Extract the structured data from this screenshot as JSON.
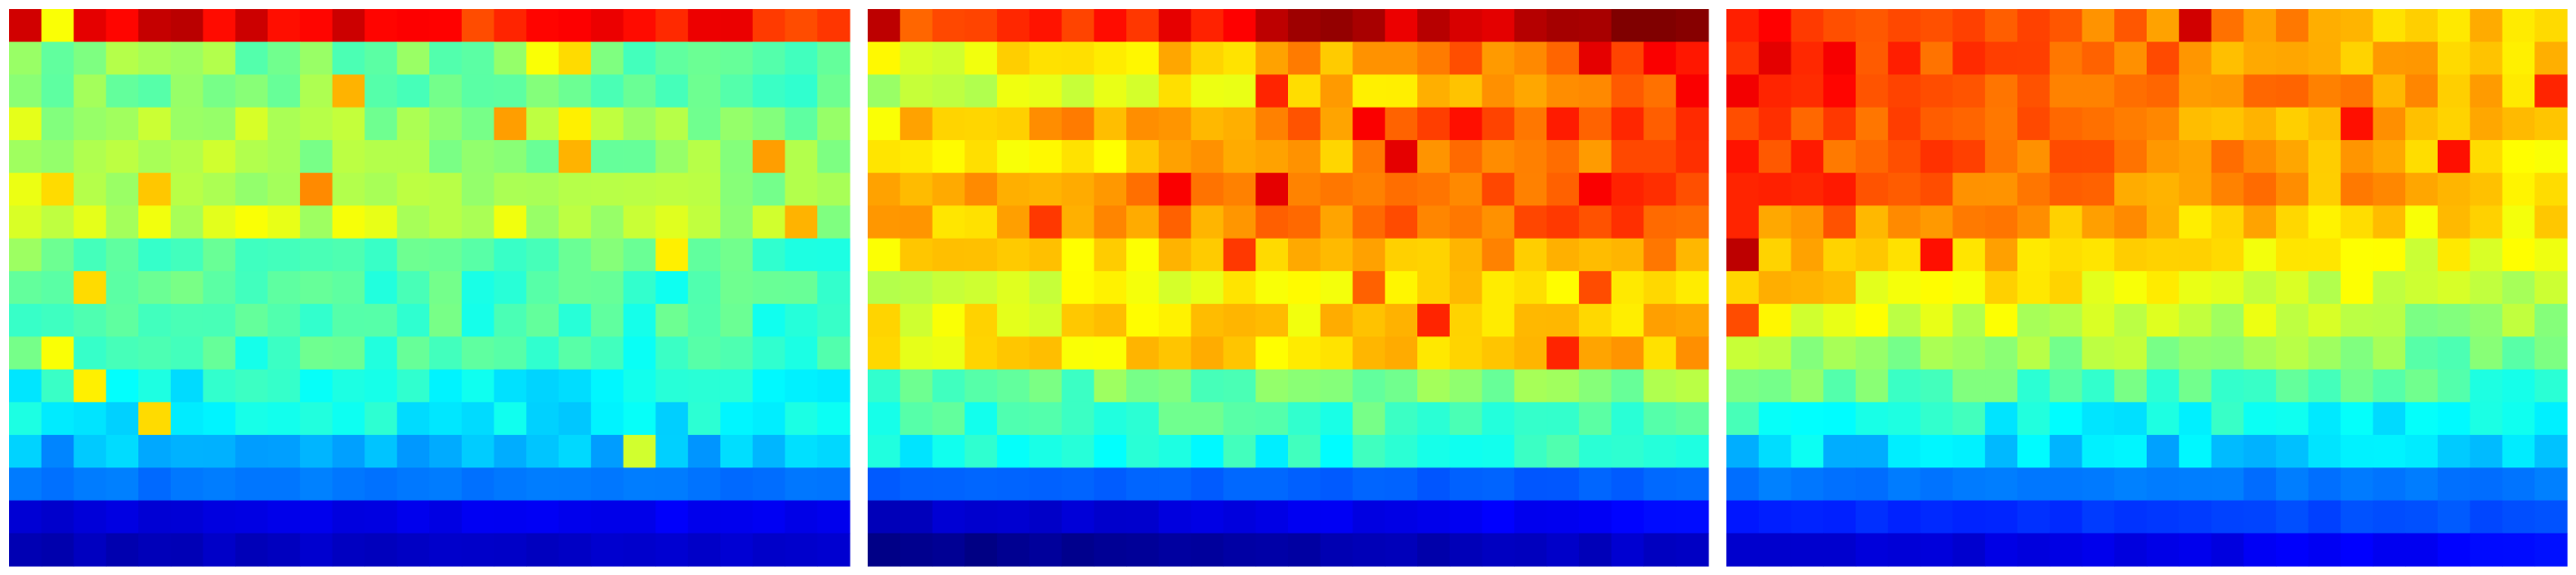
{
  "chart_data": [
    {
      "type": "heatmap",
      "colormap": "jet",
      "vrange": [
        0,
        1
      ],
      "rows": 17,
      "cols": 26,
      "row_profile": [
        0.88,
        0.48,
        0.48,
        0.52,
        0.52,
        0.54,
        0.56,
        0.46,
        0.44,
        0.44,
        0.43,
        0.38,
        0.37,
        0.3,
        0.24,
        0.1,
        0.07
      ],
      "col_ramp": [
        0.04,
        -0.02
      ],
      "column_trend": 0.1,
      "mark_colors": [
        "#800000",
        "#ff7f00",
        "#ffff00",
        "#00ffff"
      ],
      "hotspots": [
        [
          0,
          0,
          0.92
        ],
        [
          0,
          1,
          0.62
        ],
        [
          0,
          14,
          0.8
        ],
        [
          0,
          15,
          0.84
        ],
        [
          0,
          24,
          0.8
        ],
        [
          1,
          16,
          0.62
        ],
        [
          1,
          17,
          0.66
        ],
        [
          3,
          17,
          0.64
        ],
        [
          4,
          17,
          0.7
        ],
        [
          4,
          23,
          0.72
        ],
        [
          5,
          1,
          0.66
        ],
        [
          5,
          4,
          0.68
        ],
        [
          5,
          9,
          0.74
        ],
        [
          6,
          24,
          0.7
        ],
        [
          7,
          20,
          0.64
        ],
        [
          8,
          2,
          0.66
        ],
        [
          10,
          1,
          0.62
        ],
        [
          11,
          2,
          0.64
        ],
        [
          12,
          4,
          0.66
        ],
        [
          13,
          19,
          0.58
        ],
        [
          2,
          10,
          0.7
        ],
        [
          3,
          15,
          0.72
        ]
      ],
      "seed": 11
    },
    {
      "type": "heatmap",
      "colormap": "jet",
      "vrange": [
        0,
        1
      ],
      "rows": 17,
      "cols": 26,
      "row_profile": [
        0.84,
        0.66,
        0.62,
        0.71,
        0.67,
        0.72,
        0.72,
        0.66,
        0.62,
        0.64,
        0.66,
        0.48,
        0.44,
        0.4,
        0.22,
        0.1,
        0.04
      ],
      "col_ramp": [
        -0.06,
        0.16
      ],
      "column_trend": 0.22,
      "mark_colors": [
        "#800000",
        "#ff0000",
        "#ffaa00",
        "#0000ff"
      ],
      "hotspots": [
        [
          0,
          13,
          0.97
        ],
        [
          0,
          14,
          0.98
        ],
        [
          0,
          15,
          0.96
        ],
        [
          0,
          12,
          0.94
        ],
        [
          0,
          22,
          0.96
        ],
        [
          0,
          0,
          0.94
        ],
        [
          1,
          22,
          0.9
        ],
        [
          1,
          24,
          0.88
        ],
        [
          2,
          12,
          0.84
        ],
        [
          2,
          25,
          0.88
        ],
        [
          3,
          15,
          0.88
        ],
        [
          3,
          18,
          0.86
        ],
        [
          4,
          16,
          0.9
        ],
        [
          5,
          9,
          0.88
        ],
        [
          5,
          12,
          0.9
        ],
        [
          5,
          22,
          0.88
        ],
        [
          6,
          5,
          0.82
        ],
        [
          7,
          11,
          0.82
        ],
        [
          8,
          15,
          0.78
        ],
        [
          9,
          17,
          0.84
        ],
        [
          10,
          21,
          0.84
        ],
        [
          8,
          22,
          0.8
        ]
      ],
      "seed": 23
    },
    {
      "type": "heatmap",
      "colormap": "jet",
      "vrange": [
        0,
        1
      ],
      "rows": 17,
      "cols": 26,
      "row_profile": [
        0.73,
        0.73,
        0.74,
        0.72,
        0.72,
        0.73,
        0.68,
        0.64,
        0.6,
        0.56,
        0.51,
        0.45,
        0.38,
        0.33,
        0.24,
        0.18,
        0.1
      ],
      "col_ramp": [
        0.14,
        -0.08
      ],
      "column_trend": 0.2,
      "mark_colors": [
        "#ff8000",
        "#ffcc00",
        "#00ffff",
        "#000080"
      ],
      "hotspots": [
        [
          0,
          14,
          0.92
        ],
        [
          2,
          25,
          0.84
        ],
        [
          3,
          3,
          0.82
        ],
        [
          3,
          19,
          0.86
        ],
        [
          4,
          22,
          0.86
        ],
        [
          5,
          0,
          0.84
        ],
        [
          6,
          0,
          0.84
        ],
        [
          7,
          0,
          0.94
        ],
        [
          7,
          6,
          0.86
        ],
        [
          9,
          0,
          0.8
        ],
        [
          4,
          8,
          0.76
        ],
        [
          6,
          12,
          0.74
        ]
      ],
      "seed": 37
    }
  ]
}
